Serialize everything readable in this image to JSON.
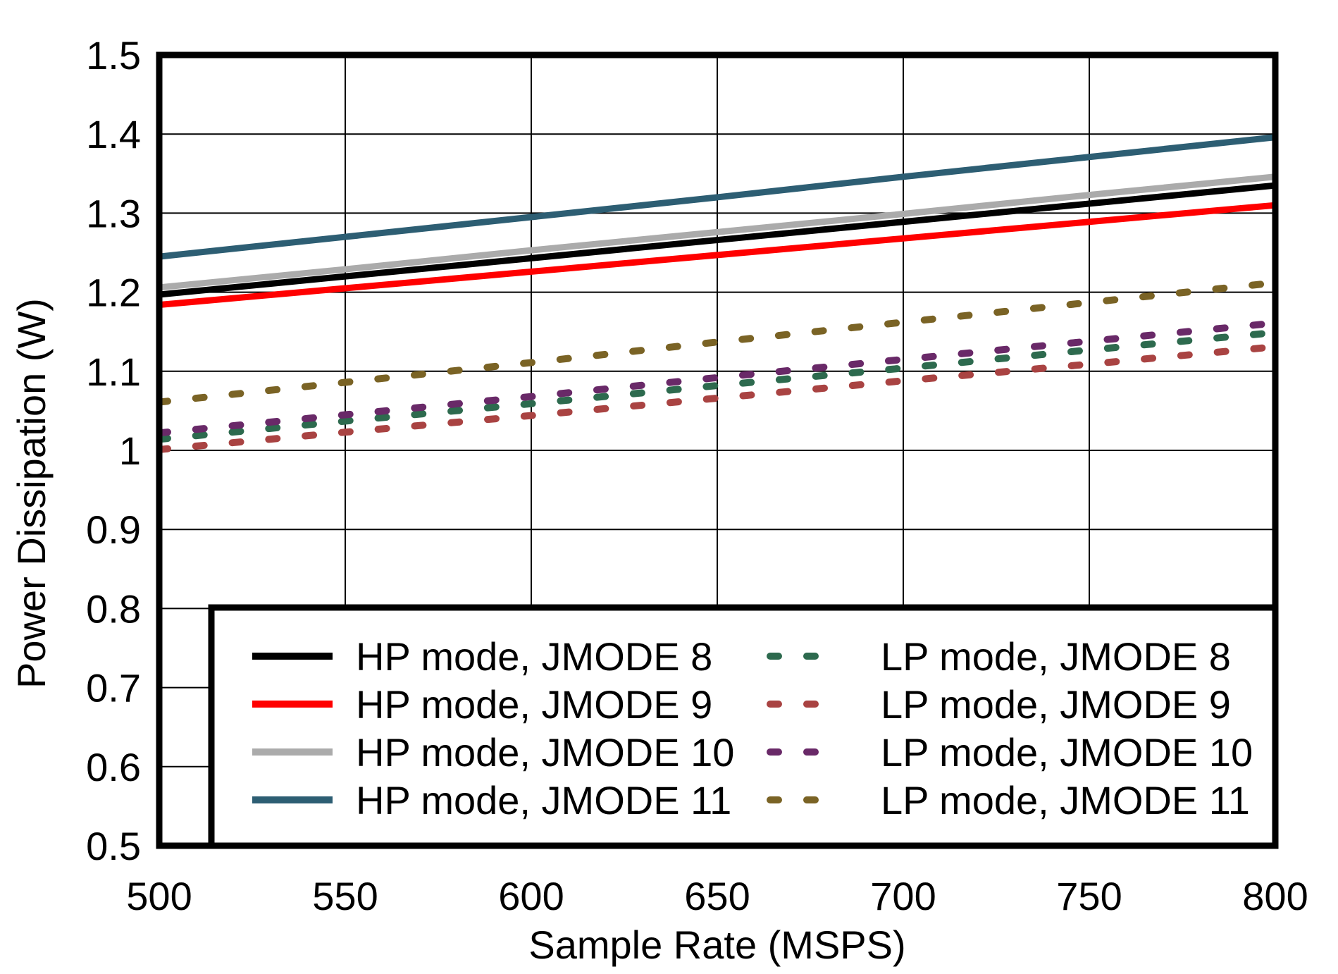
{
  "chart_data": {
    "type": "line",
    "title": "",
    "xlabel": "Sample Rate (MSPS)",
    "ylabel": "Power Dissipation (W)",
    "xlim": [
      500,
      800
    ],
    "ylim": [
      0.5,
      1.5
    ],
    "grid": true,
    "legend_position": "inside-bottom",
    "colors": {
      "axis": "#000000",
      "grid": "#000000",
      "background": "#ffffff"
    },
    "x_tick_labels": [
      "500",
      "550",
      "600",
      "650",
      "700",
      "750",
      "800"
    ],
    "x_ticks": [
      500,
      550,
      600,
      650,
      700,
      750,
      800
    ],
    "y_tick_labels": [
      "0.5",
      "0.6",
      "0.7",
      "0.8",
      "0.9",
      "1",
      "1.1",
      "1.2",
      "1.3",
      "1.4",
      "1.5"
    ],
    "y_ticks": [
      0.5,
      0.6,
      0.7,
      0.8,
      0.9,
      1.0,
      1.1,
      1.2,
      1.3,
      1.4,
      1.5
    ],
    "x": [
      500,
      550,
      600,
      650,
      700,
      750,
      800
    ],
    "series": [
      {
        "name": "HP mode, JMODE 8",
        "color": "#000000",
        "style": "solid",
        "values": [
          1.197,
          1.22,
          1.243,
          1.266,
          1.289,
          1.312,
          1.335
        ]
      },
      {
        "name": "HP mode, JMODE 9",
        "color": "#ff0000",
        "style": "solid",
        "values": [
          1.184,
          1.205,
          1.226,
          1.247,
          1.268,
          1.289,
          1.31
        ]
      },
      {
        "name": "HP mode, JMODE 10",
        "color": "#ababab",
        "style": "solid",
        "values": [
          1.206,
          1.229,
          1.253,
          1.276,
          1.299,
          1.323,
          1.346
        ]
      },
      {
        "name": "HP mode, JMODE 11",
        "color": "#2d5e73",
        "style": "solid",
        "values": [
          1.245,
          1.27,
          1.295,
          1.32,
          1.346,
          1.371,
          1.396
        ]
      },
      {
        "name": "LP mode, JMODE 8",
        "color": "#2d6a4e",
        "style": "dashed",
        "values": [
          1.014,
          1.037,
          1.059,
          1.082,
          1.104,
          1.127,
          1.149
        ]
      },
      {
        "name": "LP mode, JMODE 9",
        "color": "#a94342",
        "style": "dashed",
        "values": [
          1.001,
          1.023,
          1.044,
          1.066,
          1.088,
          1.109,
          1.131
        ]
      },
      {
        "name": "LP mode, JMODE 10",
        "color": "#692968",
        "style": "dashed",
        "values": [
          1.022,
          1.045,
          1.068,
          1.092,
          1.115,
          1.138,
          1.161
        ]
      },
      {
        "name": "LP mode, JMODE 11",
        "color": "#7a6325",
        "style": "dashed",
        "values": [
          1.061,
          1.086,
          1.111,
          1.137,
          1.162,
          1.187,
          1.212
        ]
      }
    ]
  }
}
